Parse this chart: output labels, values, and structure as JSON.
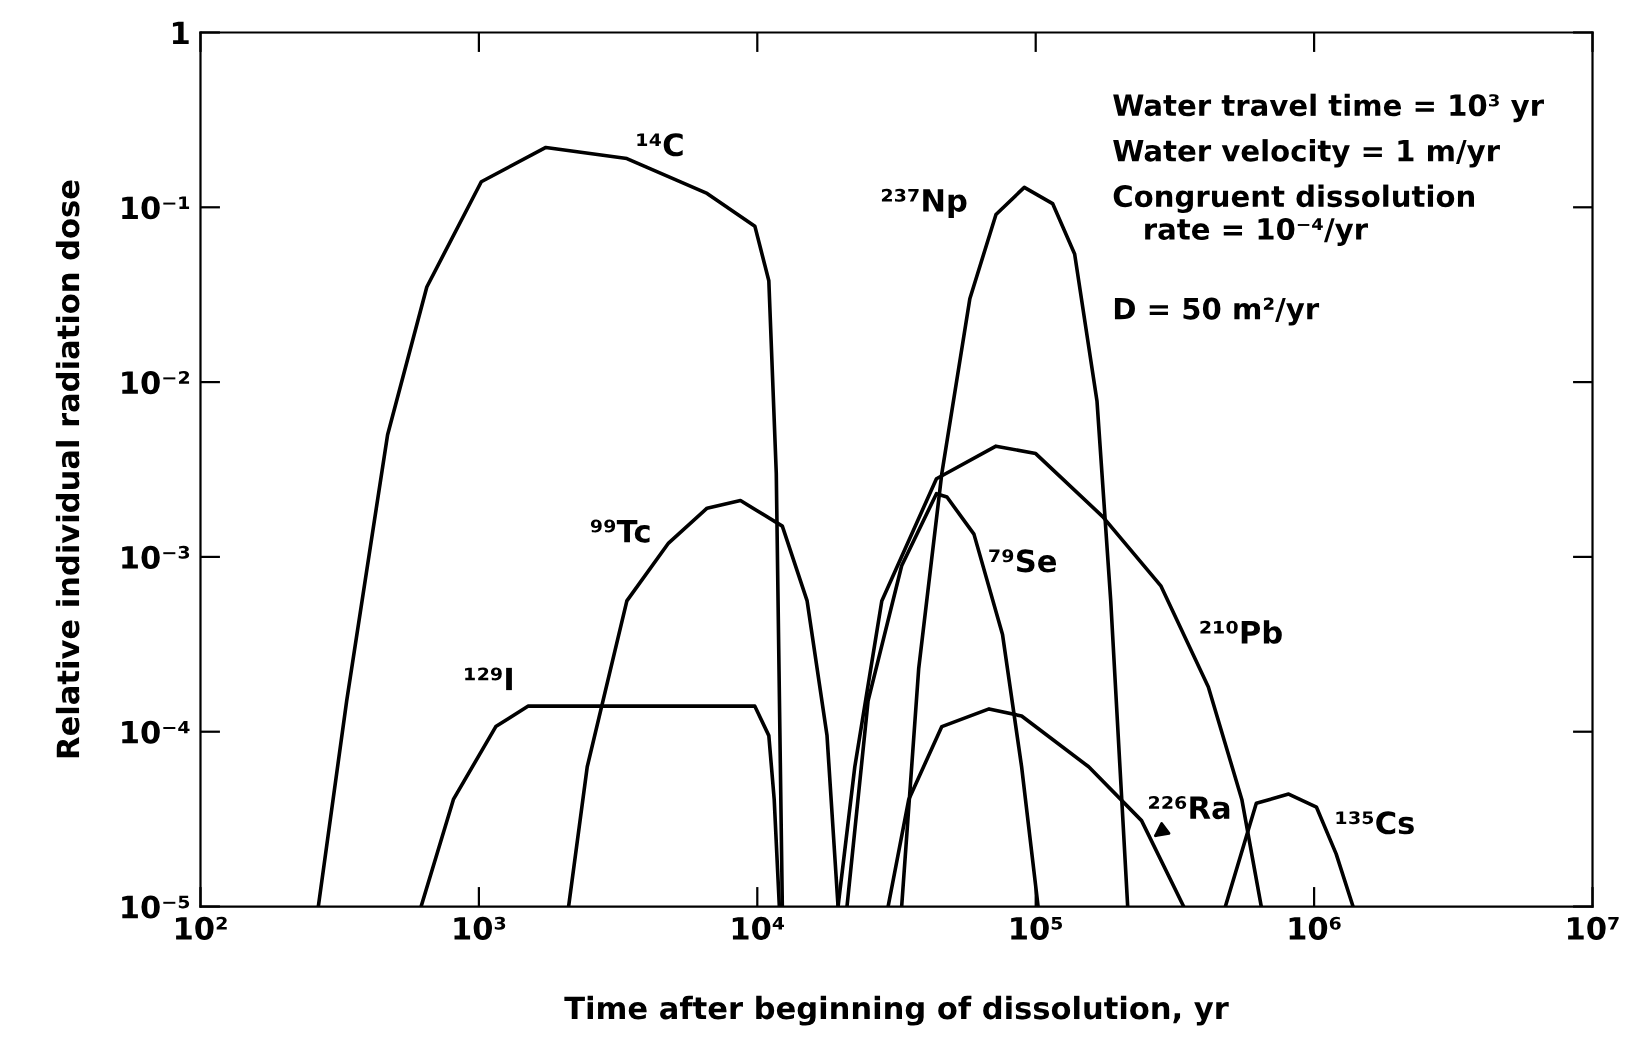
{
  "chart_data": {
    "type": "line",
    "xlabel": "Time after beginning of dissolution, yr",
    "ylabel": "Relative individual radiation dose",
    "log": "xy",
    "grid": false,
    "marker": "none",
    "line_style": "solid",
    "xlim": [
      100,
      10000000
    ],
    "ylim": [
      1e-05,
      1
    ],
    "xticks": [
      {
        "value": 100,
        "label": "10²"
      },
      {
        "value": 1000,
        "label": "10³"
      },
      {
        "value": 10000,
        "label": "10⁴"
      },
      {
        "value": 100000,
        "label": "10⁵"
      },
      {
        "value": 1000000,
        "label": "10⁶"
      },
      {
        "value": 10000000,
        "label": "10⁷"
      }
    ],
    "yticks": [
      {
        "value": 1e-05,
        "label": "10⁻⁵"
      },
      {
        "value": 0.0001,
        "label": "10⁻⁴"
      },
      {
        "value": 0.001,
        "label": "10⁻³"
      },
      {
        "value": 0.01,
        "label": "10⁻²"
      },
      {
        "value": 0.1,
        "label": "10⁻¹"
      },
      1
    ],
    "series": [
      {
        "name": "¹⁴C",
        "color": "#000000",
        "x": [
          265,
          335,
          470,
          650,
          1020,
          1740,
          3400,
          6600,
          9800,
          11000,
          11700,
          12300
        ],
        "values": [
          1e-05,
          0.00015,
          0.005,
          0.035,
          0.14,
          0.22,
          0.19,
          0.12,
          0.078,
          0.038,
          0.003,
          1e-05
        ]
      },
      {
        "name": "⁹⁹Tc",
        "color": "#000000",
        "x": [
          2100,
          2450,
          3400,
          4800,
          6600,
          8700,
          12300,
          15100,
          17800,
          19500
        ],
        "values": [
          1e-05,
          6.3e-05,
          0.00056,
          0.0012,
          0.0019,
          0.0021,
          0.0015,
          0.00056,
          9.5e-05,
          1e-05
        ]
      },
      {
        "name": "¹²⁹I",
        "color": "#000000",
        "x": [
          620,
          810,
          1150,
          1500,
          9800,
          11000,
          11500,
          12000
        ],
        "values": [
          1e-05,
          4.1e-05,
          0.000107,
          0.00014,
          0.00014,
          9.5e-05,
          4.1e-05,
          1e-05
        ]
      },
      {
        "name": "²³⁷Np",
        "color": "#000000",
        "x": [
          33000,
          38000,
          46000,
          58000,
          72000,
          91000,
          115000,
          138000,
          166000,
          186000,
          214000
        ],
        "values": [
          1e-05,
          0.00023,
          0.003,
          0.03,
          0.091,
          0.13,
          0.105,
          0.054,
          0.0078,
          0.00056,
          1e-05
        ]
      },
      {
        "name": "²¹⁰Pb",
        "color": "#000000",
        "x": [
          19500,
          22400,
          28000,
          44000,
          72000,
          100000,
          174000,
          282000,
          417000,
          550000,
          646000
        ],
        "values": [
          1e-05,
          6.3e-05,
          0.00056,
          0.0028,
          0.0043,
          0.0039,
          0.0017,
          0.00068,
          0.00018,
          4.1e-05,
          1e-05
        ]
      },
      {
        "name": "⁷⁹Se",
        "color": "#000000",
        "x": [
          21000,
          25000,
          33000,
          44000,
          48000,
          60000,
          76000,
          89000,
          102000
        ],
        "values": [
          1e-05,
          0.00015,
          0.00089,
          0.0023,
          0.0022,
          0.00135,
          0.00036,
          6.3e-05,
          1e-05
        ]
      },
      {
        "name": "²²⁶Ra",
        "color": "#000000",
        "x": [
          29500,
          35000,
          46000,
          68000,
          89000,
          155000,
          240000,
          340000
        ],
        "values": [
          1e-05,
          4.1e-05,
          0.000107,
          0.000135,
          0.000123,
          6.3e-05,
          3.1e-05,
          1e-05
        ]
      },
      {
        "name": "¹³⁵Cs",
        "color": "#000000",
        "x": [
          480000,
          620000,
          810000,
          1020000,
          1200000,
          1380000
        ],
        "values": [
          1e-05,
          3.9e-05,
          4.4e-05,
          3.7e-05,
          2e-05,
          1e-05
        ]
      }
    ],
    "annotations": [
      "Water travel time = 10³ yr",
      "Water velocity = 1 m/yr",
      "Congruent dissolution\n   rate = 10⁻⁴/yr",
      "D = 50 m²/yr"
    ]
  }
}
